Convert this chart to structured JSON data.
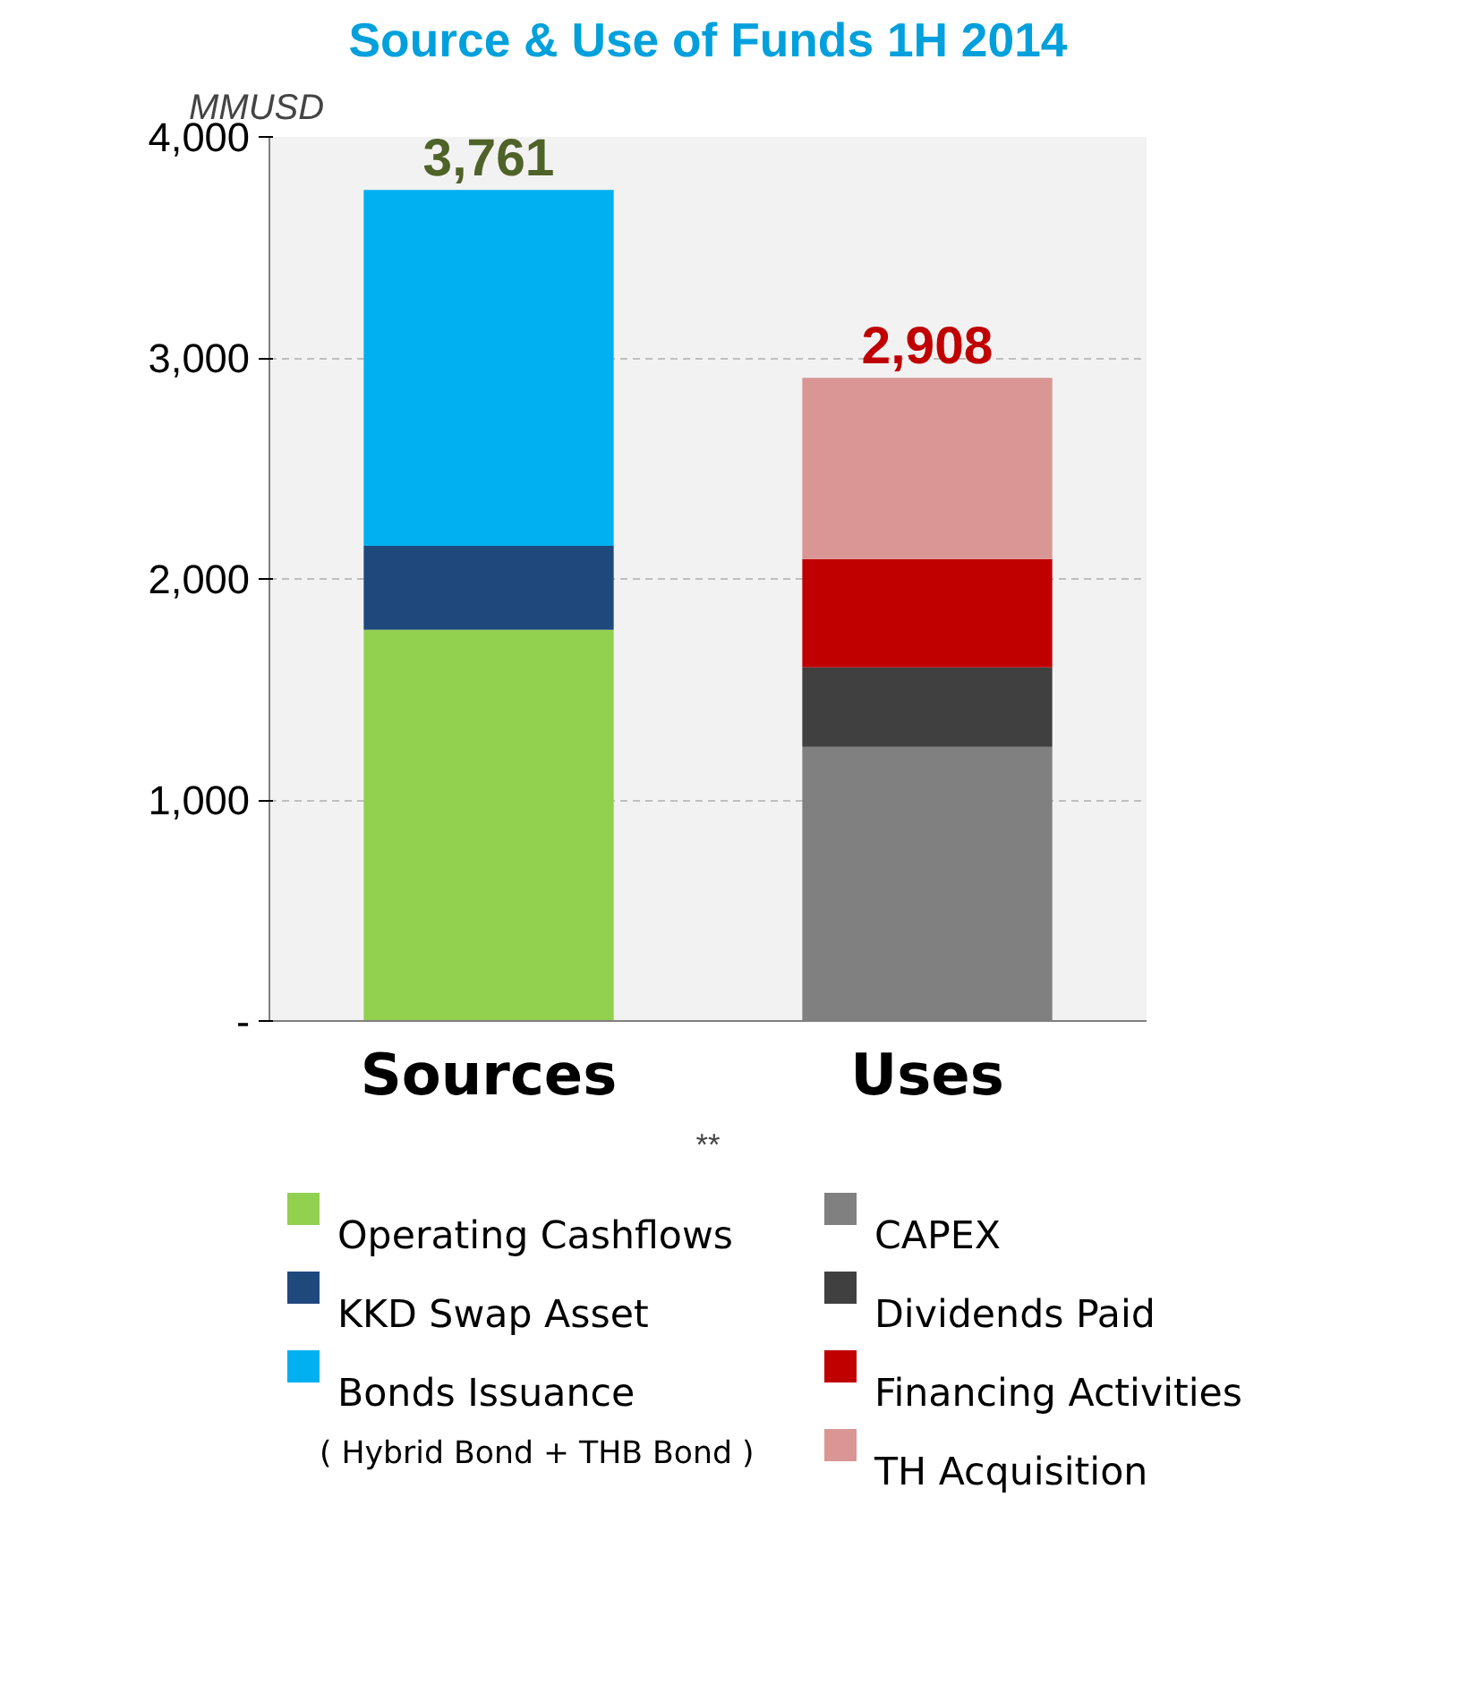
{
  "chart_data": {
    "type": "bar",
    "stacked": true,
    "title": "Source & Use of Funds 1H 2014",
    "ylabel": "MMUSD",
    "categories": [
      "Sources",
      "Uses"
    ],
    "series": [
      {
        "name": "Operating Cashflows",
        "color": "#92d050",
        "values": [
          1770,
          null
        ]
      },
      {
        "name": "KKD Swap Asset",
        "color": "#1f497d",
        "values": [
          380,
          null
        ]
      },
      {
        "name": "Bonds Issuance",
        "color": "#00b0f0",
        "values": [
          1610,
          null
        ]
      },
      {
        "name": "CAPEX",
        "color": "#808080",
        "values": [
          null,
          1240
        ]
      },
      {
        "name": "Dividends Paid",
        "color": "#404040",
        "values": [
          null,
          360
        ]
      },
      {
        "name": "Financing Activities",
        "color": "#c00000",
        "values": [
          null,
          490
        ]
      },
      {
        "name": "TH Acquisition",
        "color": "#d99694",
        "values": [
          null,
          820
        ]
      }
    ],
    "totals": [
      "3,761",
      "2,908"
    ],
    "ylim": [
      0,
      4000
    ],
    "yticks": [
      {
        "value": 0,
        "label": "-"
      },
      {
        "value": 1000,
        "label": "1,000"
      },
      {
        "value": 2000,
        "label": "2,000"
      },
      {
        "value": 3000,
        "label": "3,000"
      },
      {
        "value": 4000,
        "label": "4,000"
      }
    ],
    "grid": "y",
    "legend": "bottom",
    "annotations": [
      "**",
      "( Hybrid Bond + THB Bond )"
    ]
  }
}
